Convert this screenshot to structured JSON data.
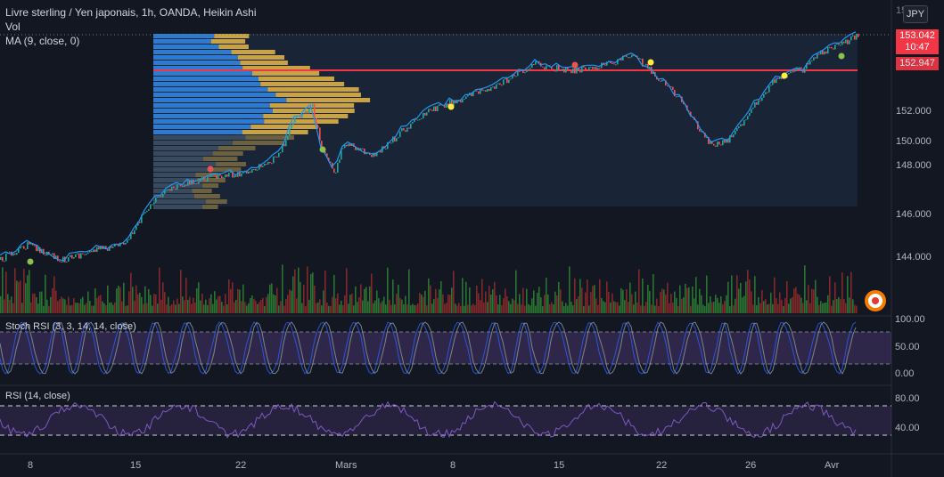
{
  "legend": {
    "title": "Livre sterling / Yen japonais, 1h, OANDA, Heikin Ashi",
    "vol": "Vol",
    "ma": "MA (9, close, 0)"
  },
  "currency_badge": "JPY",
  "top_axis_value": "15",
  "price_axis": [
    "152.000",
    "150.000",
    "148.000",
    "146.000",
    "144.000"
  ],
  "price_tags": {
    "current": {
      "price": "153.042",
      "countdown": "10:47",
      "color": "#f23645"
    },
    "line": {
      "price": "152.947",
      "color": "#f23645"
    }
  },
  "stoch_panel": {
    "title": "Stoch RSI (3, 3, 14, 14, close)",
    "axis": [
      "100.00",
      "50.00",
      "0.00"
    ]
  },
  "rsi_panel": {
    "title": "RSI (14, close)",
    "axis": [
      "80.00",
      "40.00"
    ]
  },
  "time_axis": [
    "8",
    "15",
    "22",
    "Mars",
    "8",
    "15",
    "22",
    "26",
    "Avr"
  ],
  "colors": {
    "up": "#26a69a",
    "down": "#ef5350",
    "ma": "#2196f3",
    "vol_up": "#26a69a",
    "vol_down": "#ef5350",
    "osc": "#7e57c2",
    "hline": "#f23645"
  },
  "icons": {
    "record": "record-icon"
  }
}
